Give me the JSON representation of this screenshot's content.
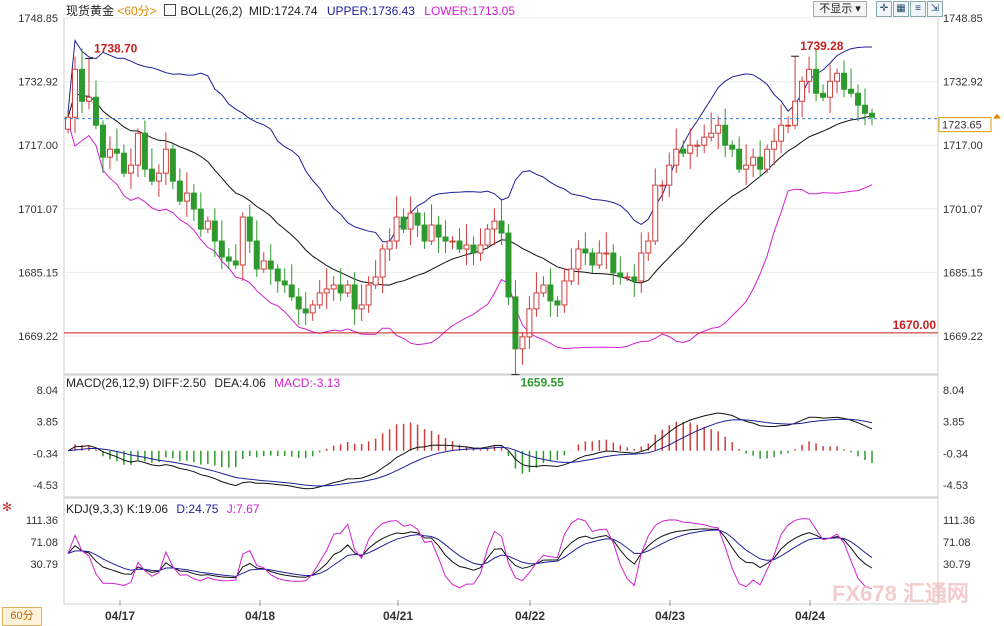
{
  "header": {
    "symbol": "现货黄金",
    "period": "<60分>",
    "boll_name": "BOLL(26,2)",
    "mid": "MID:1724.74",
    "upper": "UPPER:1736.43",
    "lower": "LOWER:1713.05",
    "hide_button": "不显示",
    "hide_arrow": "▾"
  },
  "macd_header": {
    "name": "MACD(26,12,9)",
    "diff": "DIFF:2.50",
    "dea": "DEA:4.06",
    "macd": "MACD:-3.13"
  },
  "kdj_header": {
    "name": "KDJ(9,3,3)",
    "k": "K:19.06",
    "d": "D:24.75",
    "j": "J:7.67"
  },
  "timeframe_button": "60分",
  "watermark": "FX678 汇通网",
  "colors": {
    "up": "#d23c3c",
    "down": "#2e9a2e",
    "upper_band": "#1f1f9a",
    "lower_band": "#d020d0",
    "mid_band": "#111111",
    "support": "#c81e1e",
    "current_price": "#3a7fc6"
  },
  "chart_data": [
    {
      "type": "candlestick",
      "name": "price",
      "y_ticks": [
        "1748.85",
        "1732.92",
        "1717.00",
        "1701.07",
        "1685.15",
        "1669.22"
      ],
      "ylim": [
        1669.22,
        1748.85
      ],
      "x_labels": [
        "04/17",
        "04/18",
        "04/21",
        "04/22",
        "04/23",
        "04/24"
      ],
      "annotations": {
        "high": "1738.70",
        "high_right": "1739.28",
        "low": "1659.55",
        "support": "1670.00",
        "current": "1723.65"
      },
      "support_level": 1670.0,
      "current_price": 1723.65,
      "high_value": 1738.7,
      "high_right_value": 1739.28,
      "low_value": 1659.55,
      "closes": [
        1724,
        1736,
        1728,
        1729,
        1722,
        1714,
        1716,
        1715,
        1710,
        1712,
        1720,
        1711,
        1708,
        1710,
        1716,
        1708,
        1703,
        1705,
        1701,
        1696,
        1698,
        1693,
        1689,
        1688,
        1687,
        1699,
        1693,
        1686,
        1688,
        1686,
        1683,
        1682,
        1679,
        1676,
        1675,
        1677,
        1680,
        1681,
        1682,
        1680,
        1682,
        1676,
        1677,
        1682,
        1684,
        1691,
        1693,
        1699,
        1696,
        1700,
        1697,
        1693,
        1697,
        1694,
        1693,
        1693,
        1691,
        1692,
        1690,
        1692,
        1696,
        1698,
        1695,
        1679,
        1666,
        1669,
        1676,
        1680,
        1682,
        1678,
        1677,
        1683,
        1686,
        1691,
        1690,
        1687,
        1690,
        1690,
        1685,
        1684,
        1684,
        1683,
        1690,
        1693,
        1707,
        1707,
        1712,
        1716,
        1715,
        1717,
        1717,
        1719,
        1720,
        1722,
        1717,
        1716,
        1711,
        1712,
        1714,
        1711,
        1716,
        1718,
        1722,
        1722,
        1728,
        1733,
        1736,
        1730,
        1729,
        1733,
        1735,
        1731,
        1730,
        1727,
        1725,
        1724
      ]
    },
    {
      "type": "macd",
      "y_ticks": [
        "8.04",
        "3.85",
        "-0.34",
        "-4.53"
      ],
      "ylim": [
        -4.53,
        8.04
      ],
      "diff": 2.5,
      "dea": 4.06,
      "macd": -3.13
    },
    {
      "type": "kdj",
      "y_ticks": [
        "111.36",
        "71.08",
        "30.79"
      ],
      "ylim": [
        30.79,
        111.36
      ],
      "k": 19.06,
      "d": 24.75,
      "j": 7.67
    }
  ]
}
